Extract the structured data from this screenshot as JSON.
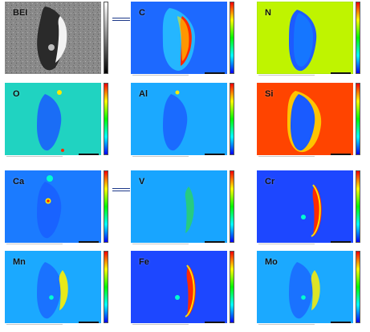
{
  "panels": [
    {
      "id": "bei",
      "label": "BEI",
      "scheme": "gray"
    },
    {
      "id": "c",
      "label": "C",
      "scheme": "c"
    },
    {
      "id": "n",
      "label": "N",
      "scheme": "n"
    },
    {
      "id": "o",
      "label": "O",
      "scheme": "o"
    },
    {
      "id": "al",
      "label": "Al",
      "scheme": "al"
    },
    {
      "id": "si",
      "label": "Si",
      "scheme": "si"
    },
    {
      "id": "ca",
      "label": "Ca",
      "scheme": "ca"
    },
    {
      "id": "v",
      "label": "V",
      "scheme": "v"
    },
    {
      "id": "cr",
      "label": "Cr",
      "scheme": "cr"
    },
    {
      "id": "mn",
      "label": "Mn",
      "scheme": "mn"
    },
    {
      "id": "fe",
      "label": "Fe",
      "scheme": "fe"
    },
    {
      "id": "mo",
      "label": "Mo",
      "scheme": "mo"
    }
  ],
  "colors": {
    "colormap_top": "#ff0000",
    "colormap_upper": "#ffff00",
    "colormap_mid": "#00ff00",
    "colormap_lower": "#00ffff",
    "colormap_bottom": "#0000ff",
    "gray_top": "#ffffff",
    "gray_bottom": "#000000",
    "connector": "#1f3a8a"
  }
}
